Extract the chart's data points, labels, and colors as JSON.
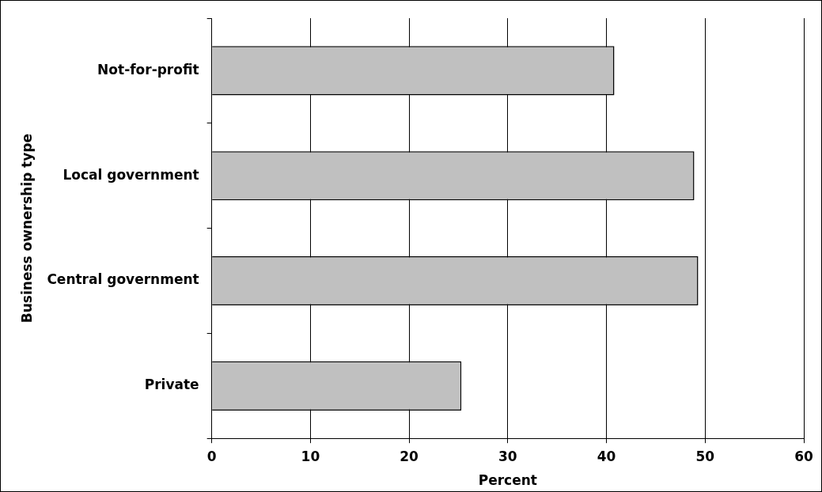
{
  "chart_data": {
    "type": "bar",
    "orientation": "horizontal",
    "categories": [
      "Not-for-profit",
      "Local government",
      "Central government",
      "Private"
    ],
    "values": [
      40.8,
      48.9,
      49.3,
      25.3
    ],
    "color": "#c0c0c0",
    "xlabel": "Percent",
    "ylabel": "Business ownership type",
    "xlim": [
      0,
      60
    ],
    "xticks": [
      0,
      10,
      20,
      30,
      40,
      50,
      60
    ],
    "grid": "x",
    "legend": false
  }
}
